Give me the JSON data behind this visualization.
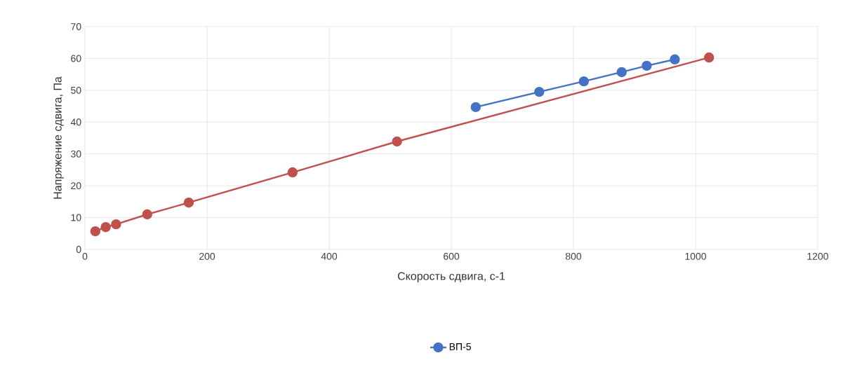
{
  "chart_data": {
    "type": "line",
    "xlabel": "Скорость сдвига, с-1",
    "ylabel": "Напряжение сдвига, Па",
    "xlim": [
      0,
      1200
    ],
    "xticks": [
      0,
      200,
      400,
      600,
      800,
      1000,
      1200
    ],
    "ylim": [
      0,
      70
    ],
    "yticks": [
      0,
      10,
      20,
      30,
      40,
      50,
      60,
      70
    ],
    "grid": true,
    "legend": "bottom",
    "marker": "circle",
    "series": [
      {
        "name": "ВП-5",
        "color": "#4472c4",
        "x": [
          640,
          744,
          817,
          879,
          920,
          966
        ],
        "values": [
          44.7,
          49.5,
          52.8,
          55.7,
          57.7,
          59.7
        ]
      },
      {
        "color": "#c0504d",
        "x": [
          17,
          34,
          51,
          102,
          170,
          340,
          511,
          1022
        ],
        "values": [
          5.7,
          7.0,
          7.9,
          11.0,
          14.7,
          24.2,
          33.9,
          60.3
        ]
      }
    ]
  }
}
